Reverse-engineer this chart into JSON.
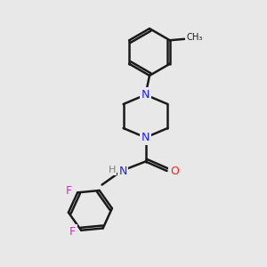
{
  "bg": "#e8e8e8",
  "bond_color": "#1a1a1a",
  "nitrogen_color": "#2020ff",
  "oxygen_color": "#ff2020",
  "fluorine_color": "#e020e0",
  "hydrogen_color": "#808080",
  "lw": 1.8,
  "xlim": [
    0,
    10
  ],
  "ylim": [
    0,
    10
  ]
}
